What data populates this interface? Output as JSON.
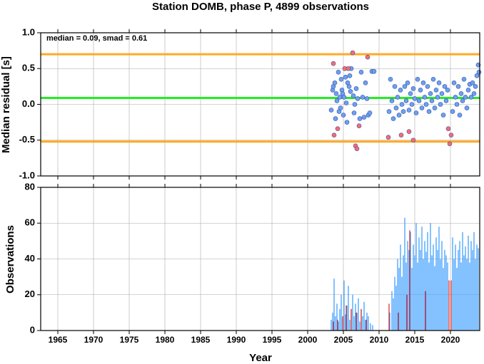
{
  "chart_data": [
    {
      "type": "scatter",
      "title": "Station DOMB, phase P, 4899 observations",
      "ylabel": "Median residual [s]",
      "annotation": "median = 0.09, smad = 0.61",
      "xlim": [
        1962.6,
        2024.1
      ],
      "xticks": [
        1965,
        1970,
        1975,
        1980,
        1985,
        1990,
        1995,
        2000,
        2005,
        2010,
        2015,
        2020
      ],
      "ylim": [
        -1,
        1
      ],
      "yticks": [
        {
          "value": -1,
          "label": "-1.0"
        },
        {
          "value": -0.5,
          "label": "-0.5"
        },
        {
          "value": 0,
          "label": "0.0"
        },
        {
          "value": 0.5,
          "label": "0.5"
        },
        {
          "value": 1,
          "label": "1.0"
        }
      ],
      "grid": true,
      "hlines": [
        {
          "value": 0.7,
          "color": "#ffaa22"
        },
        {
          "value": 0.09,
          "color": "#22ee22"
        },
        {
          "value": -0.52,
          "color": "#ffaa22"
        }
      ],
      "series": [
        {
          "color": "#6f9ff0",
          "x": [
            2003.3,
            2003.5,
            2003.6,
            2003.8,
            2003.9,
            2004.0,
            2004.1,
            2004.3,
            2004.4,
            2004.5,
            2004.6,
            2004.7,
            2004.8,
            2004.9,
            2005.0,
            2005.1,
            2005.3,
            2005.4,
            2005.5,
            2005.6,
            2005.8,
            2005.9,
            2006.0,
            2006.1,
            2006.4,
            2006.5,
            2006.6,
            2006.8,
            2007.0,
            2007.3,
            2007.5,
            2007.7,
            2007.9,
            2008.1,
            2008.3,
            2008.5,
            2008.7,
            2009.0,
            2009.3,
            2011.4,
            2011.6,
            2011.8,
            2012.0,
            2012.2,
            2012.4,
            2012.6,
            2012.8,
            2013.0,
            2013.2,
            2013.4,
            2013.6,
            2013.8,
            2014.0,
            2014.2,
            2014.4,
            2014.6,
            2014.8,
            2015.0,
            2015.2,
            2015.4,
            2015.6,
            2015.8,
            2016.0,
            2016.2,
            2016.4,
            2016.6,
            2016.8,
            2017.0,
            2017.2,
            2017.4,
            2017.6,
            2017.8,
            2018.0,
            2018.2,
            2018.4,
            2018.6,
            2018.8,
            2019.0,
            2019.2,
            2019.4,
            2019.6,
            2020.3,
            2020.5,
            2020.7,
            2020.9,
            2021.1,
            2021.3,
            2021.5,
            2021.7,
            2021.9,
            2022.1,
            2022.3,
            2022.5,
            2022.7,
            2022.9,
            2023.1,
            2023.3,
            2023.5,
            2023.7,
            2023.9,
            2024.0
          ],
          "values": [
            -0.08,
            0.2,
            0.25,
            0.3,
            -0.2,
            0.15,
            0.05,
            0.45,
            -0.1,
            0.1,
            -0.05,
            0.35,
            0.2,
            0.15,
            -0.15,
            0.1,
            0.38,
            0.02,
            -0.25,
            0.3,
            0.25,
            0.4,
            0.18,
            0.5,
            0.12,
            -0.12,
            0.0,
            0.22,
            0.08,
            -0.2,
            0.45,
            0.1,
            -0.18,
            0.3,
            0.08,
            -0.15,
            -0.12,
            0.46,
            0.46,
            -0.1,
            0.35,
            0.05,
            -0.2,
            0.25,
            -0.05,
            0.1,
            -0.15,
            0.2,
            0.0,
            -0.1,
            0.25,
            0.05,
            0.3,
            -0.08,
            0.15,
            0.0,
            0.22,
            0.08,
            -0.12,
            0.35,
            0.05,
            0.2,
            -0.05,
            0.3,
            0.1,
            0.0,
            0.25,
            -0.1,
            0.15,
            0.05,
            0.35,
            -0.05,
            0.2,
            0.1,
            0.3,
            0.0,
            0.15,
            -0.15,
            0.25,
            0.05,
            0.2,
            -0.1,
            0.3,
            0.1,
            0.0,
            0.25,
            -0.15,
            0.15,
            0.05,
            0.35,
            0.1,
            -0.05,
            0.2,
            0.28,
            0.1,
            0.3,
            0.15,
            0.25,
            0.4,
            0.55,
            0.45
          ]
        },
        {
          "color": "#ff6b6b",
          "x": [
            2003.6,
            2003.7,
            2004.2,
            2005.2,
            2005.7,
            2006.3,
            2006.7,
            2006.9,
            2007.2,
            2008.4,
            2011.3,
            2013.1,
            2014.2,
            2014.8,
            2019.7,
            2019.9,
            2020.1
          ],
          "values": [
            0.57,
            -0.43,
            -0.34,
            0.5,
            0.5,
            0.72,
            -0.58,
            -0.62,
            -0.3,
            0.66,
            -0.46,
            -0.43,
            -0.38,
            -0.5,
            -0.34,
            -0.55,
            -0.43
          ]
        }
      ]
    },
    {
      "type": "bar",
      "ylabel": "Observations",
      "xlabel": "Year",
      "xlim": [
        1962.6,
        2024.1
      ],
      "xticks": [
        1965,
        1970,
        1975,
        1980,
        1985,
        1990,
        1995,
        2000,
        2005,
        2010,
        2015,
        2020
      ],
      "ylim": [
        0,
        80
      ],
      "yticks": [
        0,
        20,
        40,
        60,
        80
      ],
      "grid": true,
      "series": [
        {
          "color": "#3399ff",
          "x": [
            2003.3,
            2003.5,
            2003.7,
            2003.9,
            2004.1,
            2004.3,
            2004.5,
            2004.7,
            2004.9,
            2005.1,
            2005.3,
            2005.5,
            2005.7,
            2005.9,
            2006.1,
            2006.3,
            2006.5,
            2006.7,
            2006.9,
            2007.1,
            2007.3,
            2007.5,
            2007.7,
            2007.9,
            2008.1,
            2008.3,
            2008.5,
            2008.8,
            2009.1,
            2011.5,
            2011.8,
            2012.0,
            2012.2,
            2012.4,
            2012.6,
            2012.8,
            2013.0,
            2013.2,
            2013.4,
            2013.6,
            2013.8,
            2014.0,
            2014.2,
            2014.4,
            2014.6,
            2014.8,
            2015.0,
            2015.2,
            2015.4,
            2015.6,
            2015.8,
            2016.0,
            2016.2,
            2016.4,
            2016.6,
            2016.8,
            2017.0,
            2017.2,
            2017.4,
            2017.6,
            2017.8,
            2018.0,
            2018.2,
            2018.4,
            2018.6,
            2018.8,
            2019.0,
            2019.2,
            2019.4,
            2019.6,
            2020.3,
            2020.5,
            2020.7,
            2020.9,
            2021.1,
            2021.3,
            2021.5,
            2021.7,
            2021.9,
            2022.1,
            2022.3,
            2022.5,
            2022.7,
            2022.9,
            2023.1,
            2023.3,
            2023.5,
            2023.7,
            2023.9
          ],
          "values": [
            6,
            10,
            29,
            8,
            15,
            5,
            12,
            20,
            7,
            28,
            9,
            14,
            25,
            6,
            12,
            20,
            8,
            15,
            10,
            18,
            5,
            12,
            8,
            16,
            6,
            10,
            8,
            4,
            3,
            10,
            22,
            18,
            30,
            25,
            40,
            35,
            48,
            30,
            42,
            63,
            38,
            50,
            45,
            55,
            35,
            48,
            42,
            60,
            38,
            52,
            45,
            58,
            40,
            50,
            44,
            55,
            38,
            60,
            42,
            48,
            36,
            52,
            45,
            58,
            40,
            50,
            35,
            45,
            42,
            38,
            52,
            40,
            48,
            35,
            45,
            50,
            38,
            55,
            42,
            47,
            40,
            53,
            38,
            50,
            45,
            55,
            40,
            48,
            46
          ]
        },
        {
          "color": "#dd2222",
          "x": [
            2003.6,
            2004.2,
            2004.9,
            2005.4,
            2006.1,
            2006.8,
            2007.5,
            2008.2,
            2011.4,
            2012.7,
            2013.9,
            2014.3,
            2016.5,
            2019.8,
            2020.1
          ],
          "values": [
            5,
            6,
            8,
            14,
            12,
            10,
            12,
            6,
            15,
            10,
            20,
            56,
            22,
            28,
            28
          ]
        }
      ]
    }
  ]
}
